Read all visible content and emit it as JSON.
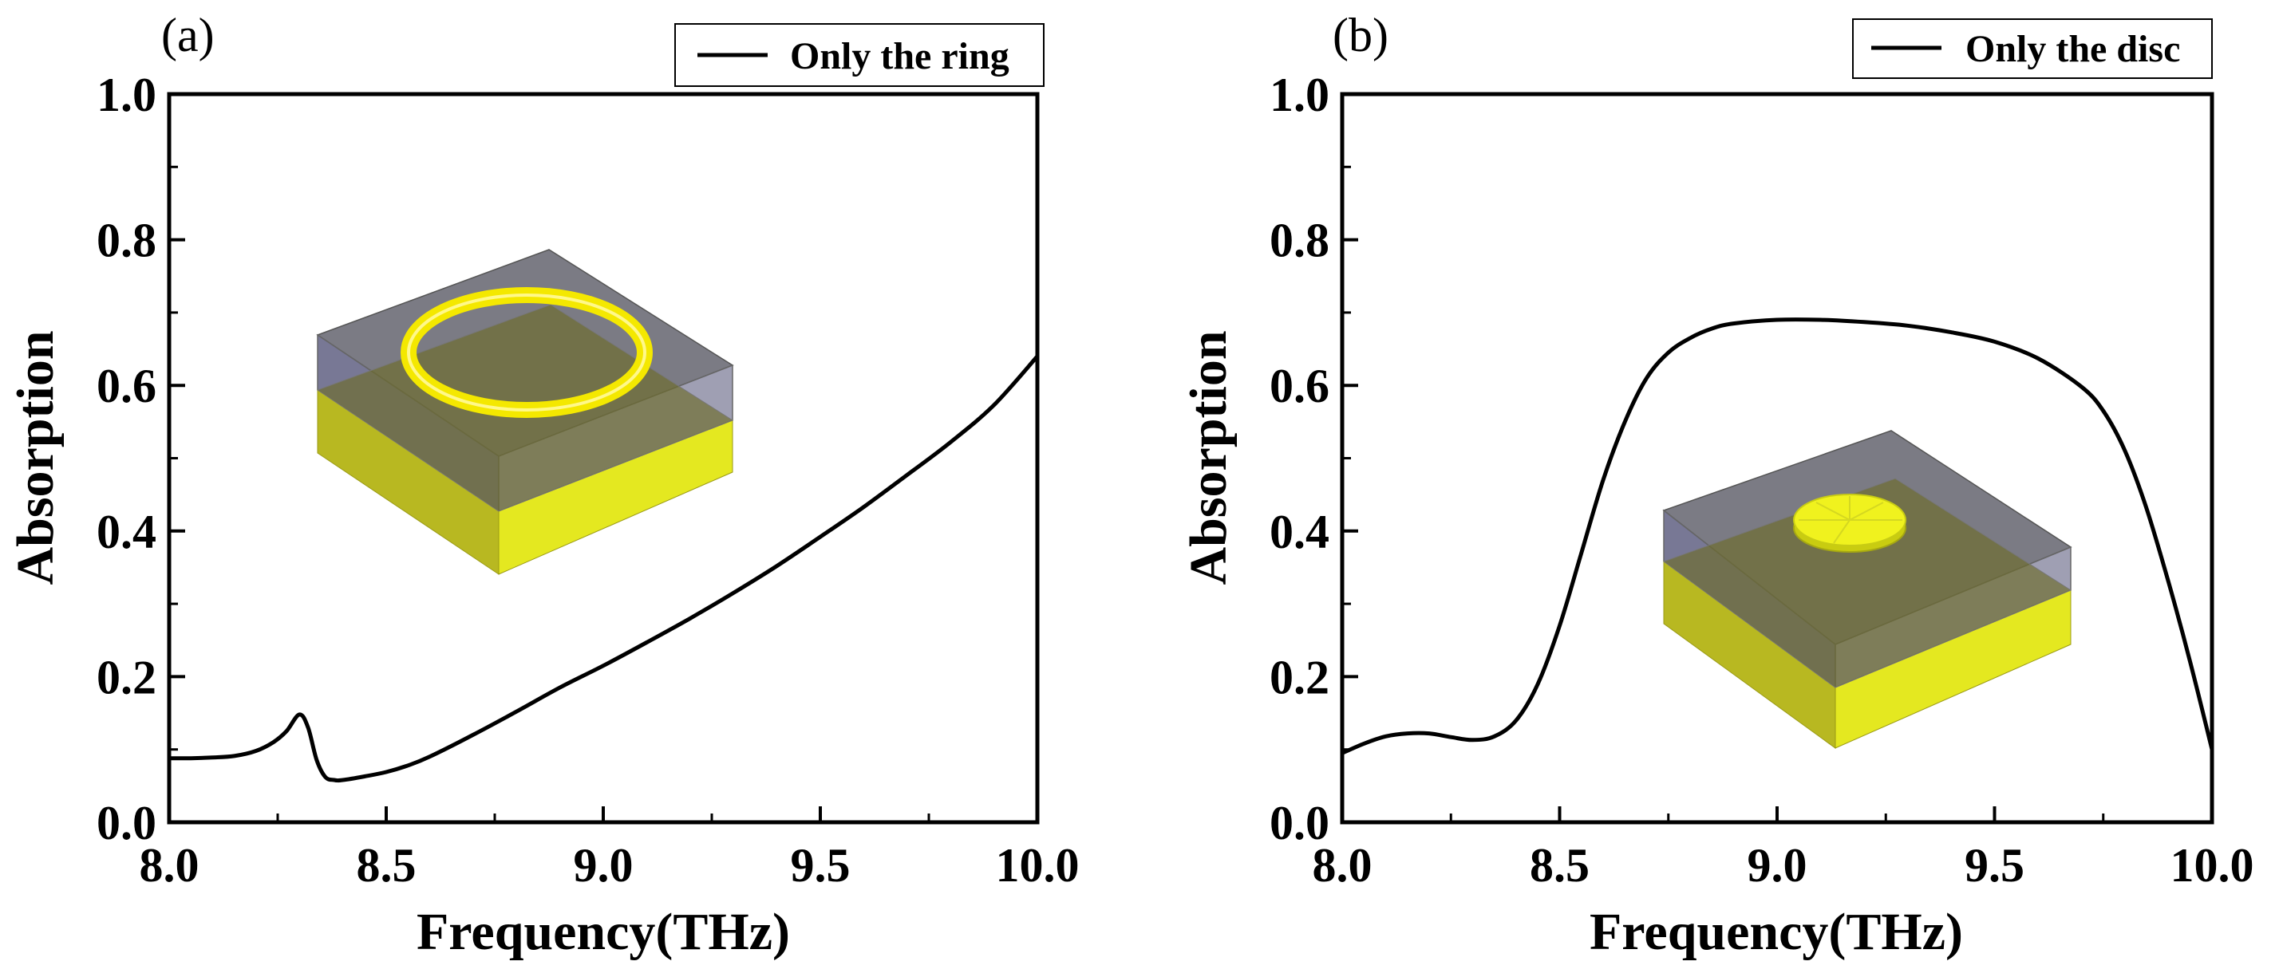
{
  "chart_data": [
    {
      "type": "line",
      "panel_label": "(a)",
      "title": "",
      "xlabel": "Frequency(THz)",
      "ylabel": "Absorption",
      "xlim": [
        8.0,
        10.0
      ],
      "ylim": [
        0.0,
        1.0
      ],
      "xticks": [
        "8.0",
        "8.5",
        "9.0",
        "9.5",
        "10.0"
      ],
      "yticks": [
        "0.0",
        "0.2",
        "0.4",
        "0.6",
        "0.8",
        "1.0"
      ],
      "grid": false,
      "legend_position": "top-right",
      "inset": "ring",
      "series": [
        {
          "name": "Only the ring",
          "x": [
            8.0,
            8.05,
            8.1,
            8.15,
            8.2,
            8.24,
            8.27,
            8.3,
            8.32,
            8.34,
            8.36,
            8.38,
            8.4,
            8.45,
            8.5,
            8.55,
            8.6,
            8.7,
            8.8,
            8.9,
            9.0,
            9.1,
            9.2,
            9.3,
            9.4,
            9.5,
            9.6,
            9.7,
            9.8,
            9.9,
            10.0
          ],
          "y": [
            0.088,
            0.088,
            0.089,
            0.091,
            0.098,
            0.11,
            0.125,
            0.148,
            0.13,
            0.085,
            0.062,
            0.058,
            0.058,
            0.063,
            0.069,
            0.078,
            0.09,
            0.12,
            0.152,
            0.185,
            0.215,
            0.247,
            0.28,
            0.315,
            0.352,
            0.392,
            0.433,
            0.477,
            0.522,
            0.573,
            0.64
          ]
        }
      ]
    },
    {
      "type": "line",
      "panel_label": "(b)",
      "title": "",
      "xlabel": "Frequency(THz)",
      "ylabel": "Absorption",
      "xlim": [
        8.0,
        10.0
      ],
      "ylim": [
        0.0,
        1.0
      ],
      "xticks": [
        "8.0",
        "8.5",
        "9.0",
        "9.5",
        "10.0"
      ],
      "yticks": [
        "0.0",
        "0.2",
        "0.4",
        "0.6",
        "0.8",
        "1.0"
      ],
      "grid": false,
      "legend_position": "top-right",
      "inset": "disc",
      "series": [
        {
          "name": "Only the disc",
          "x": [
            8.0,
            8.05,
            8.1,
            8.15,
            8.2,
            8.25,
            8.3,
            8.35,
            8.4,
            8.45,
            8.5,
            8.55,
            8.6,
            8.65,
            8.7,
            8.75,
            8.8,
            8.85,
            8.9,
            9.0,
            9.1,
            9.2,
            9.3,
            9.4,
            9.5,
            9.6,
            9.7,
            9.75,
            9.8,
            9.85,
            9.9,
            9.95,
            10.0
          ],
          "y": [
            0.095,
            0.108,
            0.118,
            0.122,
            0.122,
            0.117,
            0.113,
            0.118,
            0.14,
            0.19,
            0.27,
            0.37,
            0.47,
            0.55,
            0.61,
            0.645,
            0.665,
            0.678,
            0.685,
            0.69,
            0.69,
            0.687,
            0.682,
            0.673,
            0.66,
            0.637,
            0.598,
            0.565,
            0.51,
            0.43,
            0.33,
            0.22,
            0.1
          ]
        }
      ]
    }
  ]
}
